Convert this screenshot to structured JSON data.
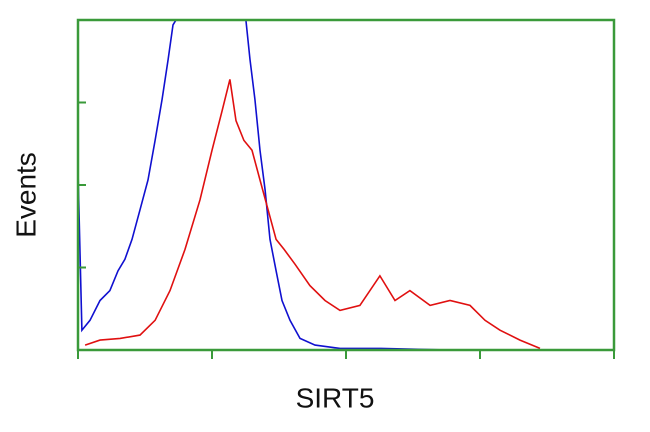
{
  "chart_data": {
    "type": "line",
    "xlabel": "SIRT5",
    "ylabel": "Events",
    "xscale": "log",
    "xlim": [
      1,
      10000
    ],
    "xticks": [
      1,
      10,
      100,
      1000,
      10000
    ],
    "ylim": [
      0,
      200
    ],
    "yticks": [
      0,
      50,
      100,
      150,
      200
    ],
    "axis_color": "#3a9a3a",
    "series": [
      {
        "name": null,
        "color": "#1010d0",
        "x": [
          1,
          1.07,
          1.23,
          1.46,
          1.73,
          1.99,
          2.24,
          2.53,
          2.9,
          3.33,
          3.76,
          4.24,
          4.7,
          5.12,
          5.39,
          9.68,
          17.9,
          19.2,
          20.9,
          22.8,
          24.9,
          27.1,
          30.1,
          33.3,
          38.2,
          45.4,
          58.7,
          90.2,
          179,
          597,
          10000
        ],
        "values": [
          109,
          12,
          18,
          30,
          36,
          48,
          55,
          67,
          85,
          103,
          127,
          152,
          176,
          197,
          200,
          null,
          200,
          176,
          152,
          121,
          97,
          67,
          48,
          30,
          18,
          7,
          3,
          1,
          1,
          0,
          0
        ]
      },
      {
        "name": null,
        "color": "#e01010",
        "x": [
          1.13,
          1.46,
          2.06,
          2.9,
          3.76,
          4.86,
          6.29,
          8.13,
          10,
          11.9,
          13.6,
          15.1,
          17.3,
          19.9,
          22.8,
          26.2,
          30.1,
          34.5,
          41.6,
          53.8,
          69.7,
          90.2,
          127,
          179,
          232,
          300,
          424,
          597,
          842,
          1089,
          1410,
          1990,
          2805
        ],
        "values": [
          3,
          6,
          7,
          9,
          18,
          36,
          61,
          91,
          121,
          145,
          164,
          139,
          127,
          121,
          103,
          85,
          67,
          61,
          52,
          39,
          30,
          24,
          27,
          45,
          30,
          36,
          27,
          30,
          27,
          18,
          12,
          6,
          1
        ]
      }
    ]
  }
}
